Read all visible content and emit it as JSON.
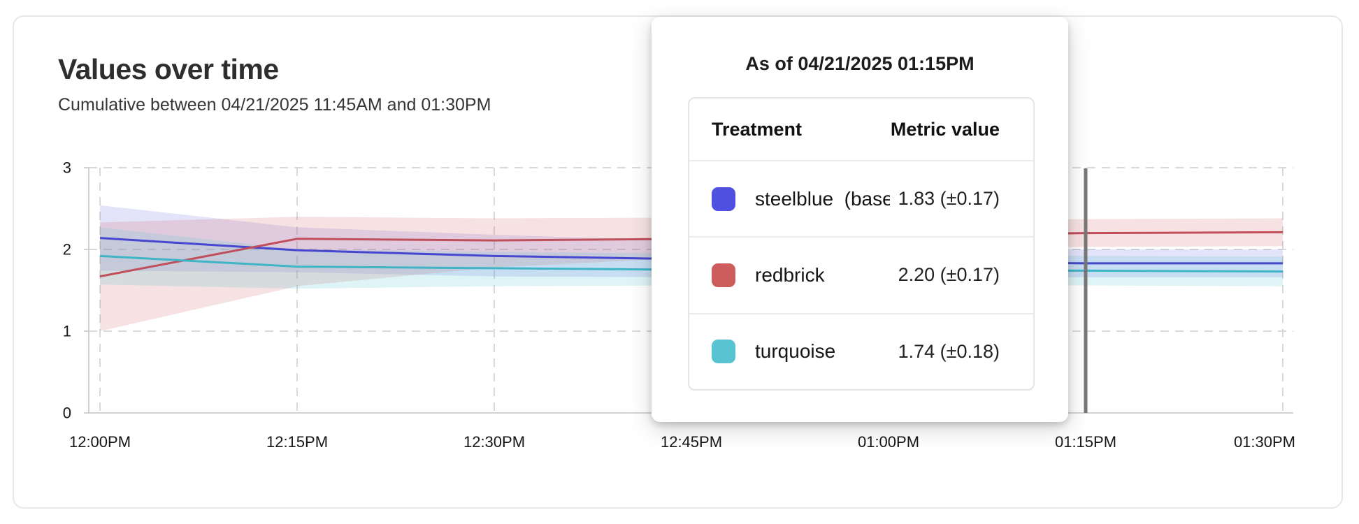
{
  "card": {
    "title": "Values over time",
    "subtitle": "Cumulative between 04/21/2025 11:45AM and 01:30PM"
  },
  "tooltip": {
    "title": "As of 04/21/2025 01:15PM",
    "table": {
      "columns": [
        "Treatment",
        "Metric value"
      ],
      "rows": [
        {
          "swatch_color": "#5050e0",
          "label": "steelblue  (baseli",
          "value": "1.83 (±0.17)"
        },
        {
          "swatch_color": "#cd5c5c",
          "label": "redbrick",
          "value": "2.20 (±0.17)"
        },
        {
          "swatch_color": "#58c3d1",
          "label": "turquoise",
          "value": "1.74 (±0.18)"
        }
      ]
    }
  },
  "chart_data": {
    "type": "line",
    "title": "Values over time",
    "subtitle": "Cumulative between 04/21/2025 11:45AM and 01:30PM",
    "x": [
      "12:00PM",
      "12:15PM",
      "12:30PM",
      "12:45PM",
      "01:00PM",
      "01:15PM",
      "01:30PM"
    ],
    "y_ticks": [
      0,
      1,
      2,
      3
    ],
    "ylim": [
      0,
      3
    ],
    "grid": "dashed",
    "legend_position": "tooltip",
    "hover_index": 5,
    "hover_label": "01:15PM",
    "grid_color": "#d9d9d9",
    "axis_color": "#d2d2d2",
    "hover_line_color": "#787878",
    "series": [
      {
        "name": "steelblue (baseline)",
        "color": "#4646cf",
        "band_color": "rgba(99,99,224,0.18)",
        "values": [
          2.14,
          1.99,
          1.92,
          1.88,
          1.85,
          1.83,
          1.83
        ],
        "band_upper": [
          2.54,
          2.27,
          2.18,
          2.1,
          2.04,
          2.0,
          2.0
        ],
        "band_lower": [
          1.74,
          1.72,
          1.67,
          1.66,
          1.66,
          1.66,
          1.66
        ]
      },
      {
        "name": "redbrick",
        "color": "#c04e5b",
        "band_color": "rgba(205,92,92,0.18)",
        "values": [
          1.67,
          2.13,
          2.11,
          2.13,
          2.17,
          2.2,
          2.21
        ],
        "band_upper": [
          2.33,
          2.4,
          2.38,
          2.39,
          2.38,
          2.37,
          2.38
        ],
        "band_lower": [
          1.0,
          1.55,
          1.78,
          1.9,
          2.0,
          2.03,
          2.04
        ]
      },
      {
        "name": "turquoise",
        "color": "#3fb4c6",
        "band_color": "rgba(88,198,211,0.20)",
        "values": [
          1.92,
          1.79,
          1.77,
          1.75,
          1.74,
          1.74,
          1.73
        ],
        "band_upper": [
          2.27,
          2.0,
          1.97,
          1.95,
          1.93,
          1.92,
          1.91
        ],
        "band_lower": [
          1.57,
          1.52,
          1.55,
          1.56,
          1.56,
          1.56,
          1.55
        ]
      }
    ]
  }
}
